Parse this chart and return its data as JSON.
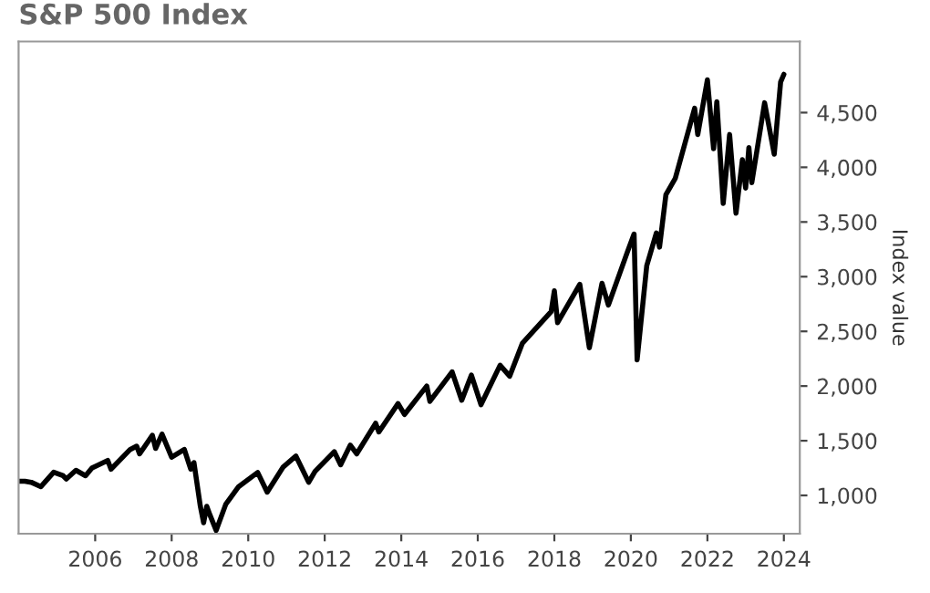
{
  "chart_data": {
    "type": "line",
    "title": "S&P 500 Index",
    "ylabel": "Index value",
    "x": [
      "2004-01",
      "2004-03",
      "2004-05",
      "2004-08",
      "2004-12",
      "2005-03",
      "2005-04",
      "2005-07",
      "2005-10",
      "2005-12",
      "2006-05",
      "2006-06",
      "2006-12",
      "2007-02",
      "2007-03",
      "2007-07",
      "2007-08",
      "2007-10",
      "2008-01",
      "2008-05",
      "2008-07",
      "2008-08",
      "2008-10",
      "2008-11",
      "2008-12",
      "2009-01",
      "2009-03",
      "2009-06",
      "2009-10",
      "2010-04",
      "2010-07",
      "2010-12",
      "2011-04",
      "2011-08",
      "2011-10",
      "2012-04",
      "2012-06",
      "2012-09",
      "2012-11",
      "2013-05",
      "2013-06",
      "2013-12",
      "2014-02",
      "2014-09",
      "2014-10",
      "2015-05",
      "2015-08",
      "2015-11",
      "2016-02",
      "2016-08",
      "2016-11",
      "2017-03",
      "2017-12",
      "2018-01",
      "2018-02",
      "2018-09",
      "2018-12",
      "2019-04",
      "2019-06",
      "2019-12",
      "2020-02",
      "2020-03",
      "2020-06",
      "2020-09",
      "2020-10",
      "2020-12",
      "2021-03",
      "2021-09",
      "2021-10",
      "2022-01",
      "2022-03",
      "2022-04",
      "2022-06",
      "2022-08",
      "2022-10",
      "2022-12",
      "2023-01",
      "2023-02",
      "2023-03",
      "2023-07",
      "2023-10",
      "2023-12",
      "2024-01"
    ],
    "series": [
      {
        "color": "#000000",
        "values": [
          1130,
          1130,
          1120,
          1080,
          1212,
          1180,
          1150,
          1230,
          1180,
          1250,
          1320,
          1240,
          1420,
          1450,
          1380,
          1550,
          1430,
          1560,
          1350,
          1420,
          1240,
          1300,
          900,
          750,
          900,
          820,
          680,
          920,
          1080,
          1210,
          1030,
          1260,
          1360,
          1120,
          1220,
          1400,
          1280,
          1460,
          1380,
          1660,
          1580,
          1840,
          1740,
          2000,
          1860,
          2130,
          1870,
          2100,
          1830,
          2190,
          2090,
          2390,
          2680,
          2870,
          2580,
          2930,
          2350,
          2940,
          2740,
          3230,
          3390,
          2240,
          3100,
          3400,
          3270,
          3750,
          3900,
          4540,
          4300,
          4800,
          4170,
          4600,
          3670,
          4300,
          3580,
          4070,
          3810,
          4180,
          3860,
          4590,
          4120,
          4780,
          4850
        ]
      }
    ],
    "xlim": [
      "2004-01-01",
      "2024-06-01"
    ],
    "xticks": [
      {
        "value": "2006-01-01",
        "label": "2006"
      },
      {
        "value": "2008-01-01",
        "label": "2008"
      },
      {
        "value": "2010-01-01",
        "label": "2010"
      },
      {
        "value": "2012-01-01",
        "label": "2012"
      },
      {
        "value": "2014-01-01",
        "label": "2014"
      },
      {
        "value": "2016-01-01",
        "label": "2016"
      },
      {
        "value": "2018-01-01",
        "label": "2018"
      },
      {
        "value": "2020-01-01",
        "label": "2020"
      },
      {
        "value": "2022-01-01",
        "label": "2022"
      },
      {
        "value": "2024-01-01",
        "label": "2024"
      }
    ],
    "ylim": [
      650,
      5150
    ],
    "yticks": [
      {
        "value": 1000,
        "label": "1,000"
      },
      {
        "value": 1500,
        "label": "1,500"
      },
      {
        "value": 2000,
        "label": "2,000"
      },
      {
        "value": 2500,
        "label": "2,500"
      },
      {
        "value": 3000,
        "label": "3,000"
      },
      {
        "value": 3500,
        "label": "3,500"
      },
      {
        "value": 4000,
        "label": "4,000"
      },
      {
        "value": 4500,
        "label": "4,500"
      }
    ],
    "grid": false,
    "legend": false,
    "line_style": "solid",
    "marker": "none"
  }
}
